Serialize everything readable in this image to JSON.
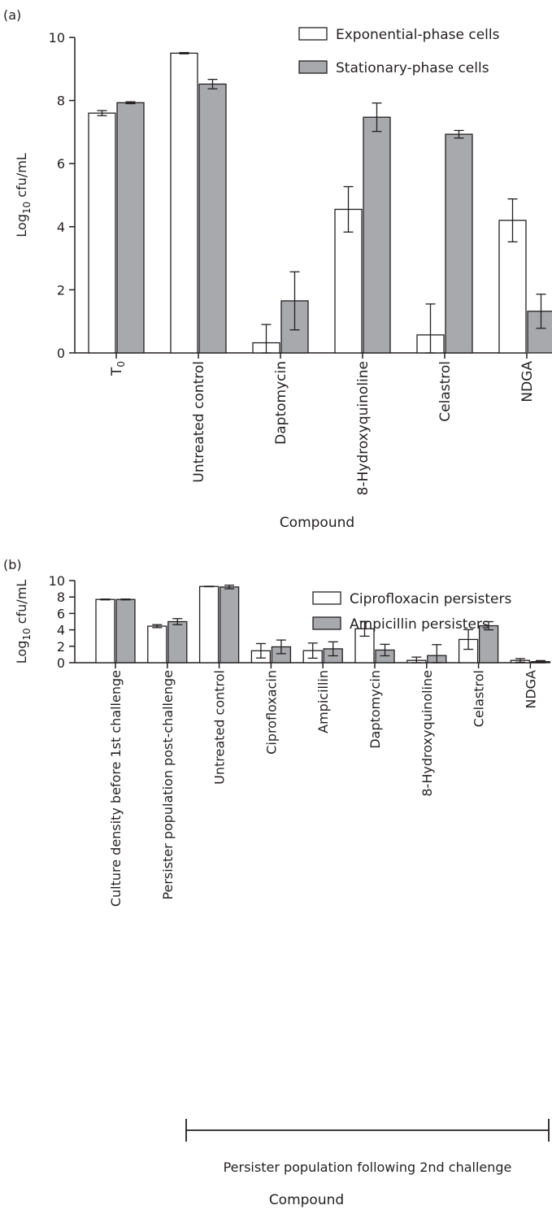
{
  "chart_data": [
    {
      "panel_label": "(a)",
      "type": "bar",
      "categories": [
        "T",
        "Untreated control",
        "Daptomycin",
        "8-Hydroxyquinoline",
        "Celastrol",
        "NDGA"
      ],
      "category_subscripts": [
        "0",
        "",
        "",
        "",
        "",
        ""
      ],
      "series": [
        {
          "name": "Exponential-phase cells",
          "color": "#ffffff",
          "values": [
            7.6,
            9.5,
            0.32,
            4.55,
            0.57,
            4.2
          ],
          "errors": [
            0.08,
            0.02,
            0.58,
            0.72,
            0.98,
            0.68
          ]
        },
        {
          "name": "Stationary-phase cells",
          "color": "#a7a9ac",
          "values": [
            7.93,
            8.52,
            1.65,
            7.47,
            6.93,
            1.32
          ],
          "errors": [
            0.03,
            0.15,
            0.92,
            0.45,
            0.12,
            0.54
          ]
        }
      ],
      "ylabel_main": "Log",
      "ylabel_sub": "10",
      "ylabel_rest": " cfu/mL",
      "xlabel": "Compound",
      "yticks": [
        0,
        2,
        4,
        6,
        8,
        10
      ],
      "ylim": [
        0,
        10
      ],
      "legend": "top-right",
      "grid": false
    },
    {
      "panel_label": "(b)",
      "type": "bar",
      "categories": [
        "Culture density before 1st challenge",
        "Persister population post-challenge",
        "Untreated control",
        "Ciprofloxacin",
        "Ampicillin",
        "Daptomycin",
        "8-Hydroxyquinoline",
        "Celastrol",
        "NDGA"
      ],
      "category_subscripts": [
        "",
        "",
        "",
        "",
        "",
        "",
        "",
        "",
        ""
      ],
      "series": [
        {
          "name": "Ciprofloxacin persisters",
          "color": "#ffffff",
          "values": [
            7.7,
            4.45,
            9.28,
            1.45,
            1.47,
            4.13,
            0.28,
            2.83,
            0.28
          ],
          "errors": [
            0.05,
            0.18,
            0.03,
            0.88,
            0.92,
            0.9,
            0.4,
            1.2,
            0.22
          ]
        },
        {
          "name": "Ampicillin persisters",
          "color": "#a7a9ac",
          "values": [
            7.7,
            5.0,
            9.22,
            1.93,
            1.69,
            1.54,
            0.87,
            4.5,
            0.13
          ],
          "errors": [
            0.05,
            0.37,
            0.22,
            0.83,
            0.85,
            0.7,
            1.33,
            0.5,
            0.13
          ]
        }
      ],
      "ylabel_main": "Log",
      "ylabel_sub": "10",
      "ylabel_rest": " cfu/mL",
      "xlabel": "Compound",
      "bracket_label": "Persister population following 2nd challenge",
      "yticks": [
        0,
        2,
        4,
        6,
        8,
        10
      ],
      "ylim": [
        0,
        10
      ],
      "legend": "top-right",
      "grid": false
    }
  ]
}
